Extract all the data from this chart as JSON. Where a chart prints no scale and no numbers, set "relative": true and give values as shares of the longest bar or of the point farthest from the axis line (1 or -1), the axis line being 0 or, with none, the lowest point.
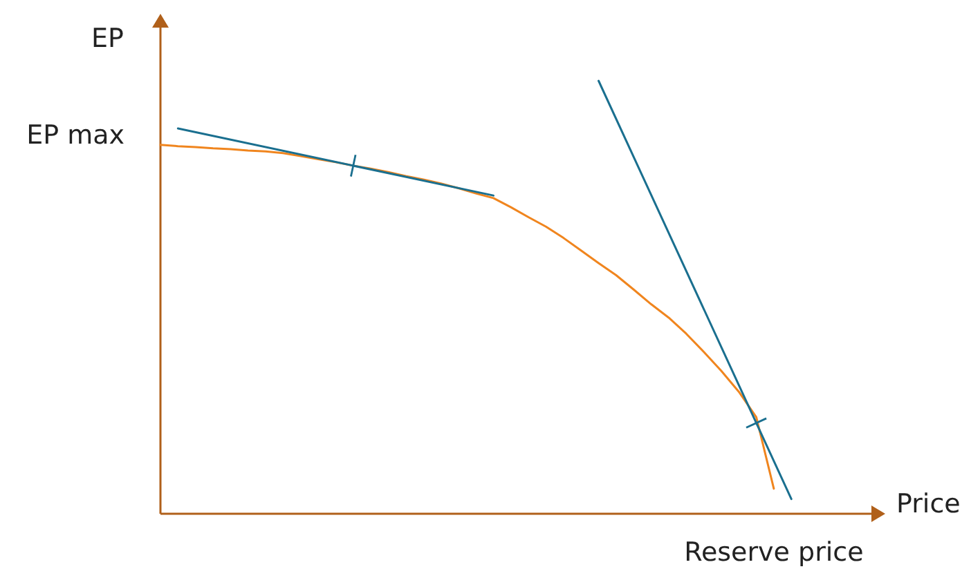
{
  "chart_data": {
    "type": "line",
    "relative": true,
    "xlabel": "Price",
    "ylabel": "EP",
    "annotations": [
      "EP max",
      "Reserve price"
    ],
    "categories": [
      null,
      null,
      null,
      null,
      null,
      null,
      null,
      null,
      null,
      null,
      null,
      null,
      null,
      null,
      null,
      null,
      null,
      null,
      null,
      null,
      null,
      null,
      null,
      null,
      null,
      null,
      null,
      null,
      null,
      null,
      null,
      null,
      null,
      null,
      null,
      null,
      null
    ],
    "series": [
      {
        "color": "#f0851e",
        "values": [
          0.852,
          0.849,
          0.847,
          0.844,
          0.842,
          0.839,
          0.837,
          0.833,
          0.826,
          0.819,
          0.812,
          0.804,
          0.797,
          0.789,
          0.78,
          0.772,
          0.763,
          0.752,
          0.74,
          0.729,
          0.708,
          0.685,
          0.663,
          0.637,
          0.608,
          0.579,
          0.551,
          0.518,
          0.484,
          0.453,
          0.416,
          0.374,
          0.33,
          0.282,
          0.223,
          0.058,
          null
        ]
      },
      {
        "color": "#1a6f8f",
        "values": [
          null,
          0.89,
          null,
          null,
          null,
          null,
          null,
          null,
          null,
          null,
          null,
          null,
          null,
          null,
          null,
          null,
          null,
          null,
          null,
          0.735,
          null,
          null,
          null,
          null,
          null,
          null,
          null,
          null,
          null,
          null,
          null,
          null,
          null,
          null,
          null,
          null,
          null
        ]
      },
      {
        "color": "#1a6f8f",
        "values": [
          null,
          null,
          null,
          null,
          null,
          null,
          null,
          null,
          null,
          null,
          null,
          null,
          null,
          null,
          null,
          null,
          null,
          null,
          null,
          null,
          null,
          null,
          null,
          null,
          null,
          1,
          null,
          null,
          null,
          null,
          null,
          null,
          null,
          null,
          null,
          null,
          0.034
        ]
      }
    ]
  }
}
